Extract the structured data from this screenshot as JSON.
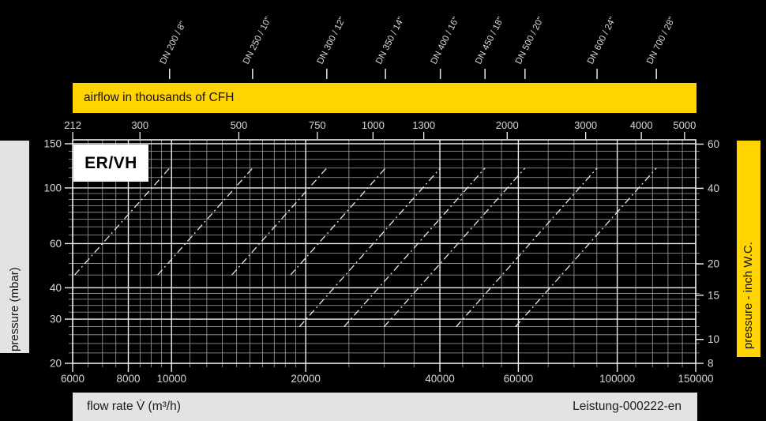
{
  "title_box": {
    "label": "ER/VH"
  },
  "banner": {
    "text": "airflow in thousands of CFH"
  },
  "side_labels": {
    "left": "pressure (mbar)",
    "right": "pressure - inch W.C."
  },
  "footer": {
    "left": "flow rate V̇ (m³/h)",
    "right": "Leistung-000222-en"
  },
  "colors": {
    "yellow": "#ffd400",
    "gray_bar": "#e3e3e3",
    "background": "#000000",
    "grid_minor": "#a0a0a0",
    "grid_major": "#f0f0f0",
    "frame": "#ffffff",
    "text_light": "#d8d8d8",
    "curve": "#e8e8e8"
  },
  "chart_data": {
    "type": "line",
    "scales": "log-log",
    "grid": "on",
    "x_axis": {
      "label": "flow rate V̇ (m³/h)",
      "range": [
        6000,
        150000
      ],
      "ticks": [
        6000,
        8000,
        10000,
        20000,
        40000,
        60000,
        100000,
        150000
      ],
      "minor_steps": [
        [
          6000,
          10000,
          500
        ],
        [
          10000,
          20000,
          1000
        ],
        [
          20000,
          60000,
          5000
        ],
        [
          60000,
          150000,
          10000
        ]
      ]
    },
    "y_axis_left": {
      "label": "pressure (mbar)",
      "range": [
        20,
        155.5
      ],
      "ticks": [
        150,
        100,
        60,
        40,
        30,
        20
      ],
      "minor_steps": [
        [
          20,
          40,
          2
        ],
        [
          40,
          100,
          5
        ],
        [
          100,
          150,
          10
        ]
      ]
    },
    "y_axis_right": {
      "label": "pressure - inch W.C.",
      "ticks": [
        60,
        40,
        20,
        15,
        10,
        8
      ],
      "mbar_per_inch_wc": 2.4908
    },
    "top_axis": {
      "label": "airflow in thousands of CFH",
      "ticks": [
        212,
        300,
        500,
        750,
        1000,
        1300,
        2000,
        3000,
        4000,
        5000
      ],
      "m3h_per_thousand_cfh": 28.3168
    },
    "series": [
      {
        "name": "DN 200 / 8\"",
        "flow_at_120mbar": 9900,
        "pressure_range": [
          45,
          120
        ]
      },
      {
        "name": "DN 250 / 10\"",
        "flow_at_120mbar": 15200,
        "pressure_range": [
          45,
          120
        ]
      },
      {
        "name": "DN 300 / 12\"",
        "flow_at_120mbar": 22300,
        "pressure_range": [
          45,
          120
        ]
      },
      {
        "name": "DN 350 / 14\"",
        "flow_at_120mbar": 30200,
        "pressure_range": [
          45,
          120
        ]
      },
      {
        "name": "DN 400 / 16\"",
        "flow_at_120mbar": 40100,
        "pressure_range": [
          28,
          120
        ]
      },
      {
        "name": "DN 450 / 18\"",
        "flow_at_120mbar": 50500,
        "pressure_range": [
          28,
          120
        ]
      },
      {
        "name": "DN 500 / 20\"",
        "flow_at_120mbar": 62100,
        "pressure_range": [
          28,
          120
        ]
      },
      {
        "name": "DN 600 / 24\"",
        "flow_at_120mbar": 90100,
        "pressure_range": [
          28,
          120
        ]
      },
      {
        "name": "DN 700 / 28\"",
        "flow_at_120mbar": 122400,
        "pressure_range": [
          28,
          120
        ]
      }
    ]
  }
}
